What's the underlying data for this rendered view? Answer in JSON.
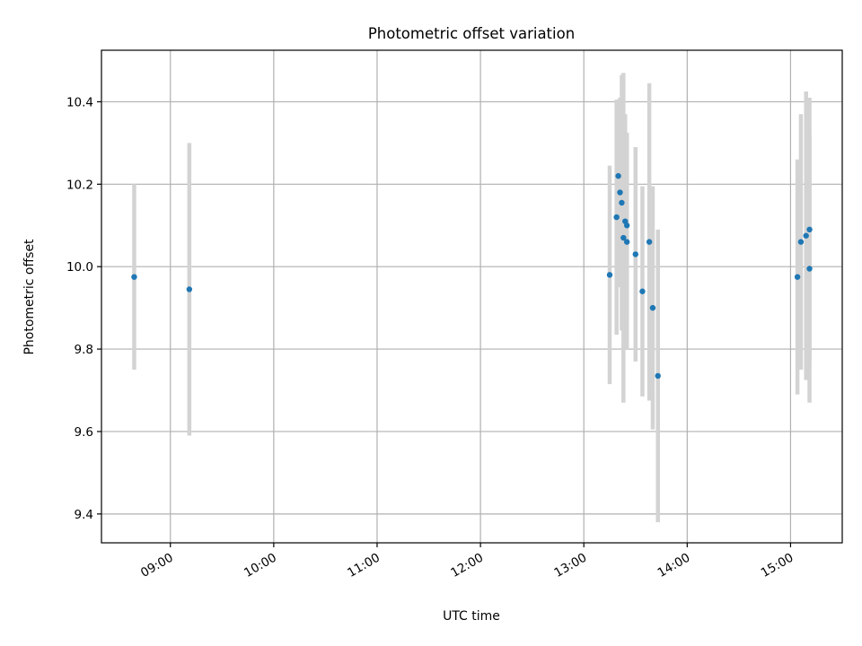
{
  "chart_data": {
    "type": "scatter",
    "title": "Photometric offset variation",
    "xlabel": "UTC time",
    "ylabel": "Photometric offset",
    "x_unit": "hours UTC",
    "xlim": [
      "08:20",
      "15:30"
    ],
    "ylim": [
      9.33,
      10.525
    ],
    "x_ticks": [
      "09:00",
      "10:00",
      "11:00",
      "12:00",
      "13:00",
      "14:00",
      "15:00"
    ],
    "y_ticks": [
      "9.4",
      "9.6",
      "9.8",
      "10.0",
      "10.2",
      "10.4"
    ],
    "grid": true,
    "legend": "none",
    "marker_color": "#1f77b4",
    "errorbar_color": "#d3d3d3",
    "points": [
      {
        "x": "08:39",
        "y": 9.975,
        "err": 0.225
      },
      {
        "x": "09:11",
        "y": 9.945,
        "err": 0.355
      },
      {
        "x": "13:15",
        "y": 9.98,
        "err": 0.265
      },
      {
        "x": "13:19",
        "y": 10.12,
        "err": 0.285
      },
      {
        "x": "13:20",
        "y": 10.22,
        "err": 0.185
      },
      {
        "x": "13:21",
        "y": 10.18,
        "err": 0.23
      },
      {
        "x": "13:22",
        "y": 10.155,
        "err": 0.31
      },
      {
        "x": "13:23",
        "y": 10.07,
        "err": 0.4
      },
      {
        "x": "13:24",
        "y": 10.11,
        "err": 0.26
      },
      {
        "x": "13:25",
        "y": 10.1,
        "err": 0.225
      },
      {
        "x": "13:25",
        "y": 10.06,
        "err": 0.26
      },
      {
        "x": "13:30",
        "y": 10.03,
        "err": 0.26
      },
      {
        "x": "13:34",
        "y": 9.94,
        "err": 0.255
      },
      {
        "x": "13:38",
        "y": 10.06,
        "err": 0.385
      },
      {
        "x": "13:40",
        "y": 9.9,
        "err": 0.295
      },
      {
        "x": "13:43",
        "y": 9.735,
        "err": 0.355
      },
      {
        "x": "15:04",
        "y": 9.975,
        "err": 0.285
      },
      {
        "x": "15:06",
        "y": 10.06,
        "err": 0.31
      },
      {
        "x": "15:09",
        "y": 10.075,
        "err": 0.35
      },
      {
        "x": "15:11",
        "y": 9.995,
        "err": 0.325
      },
      {
        "x": "15:11",
        "y": 10.09,
        "err": 0.32
      }
    ]
  }
}
